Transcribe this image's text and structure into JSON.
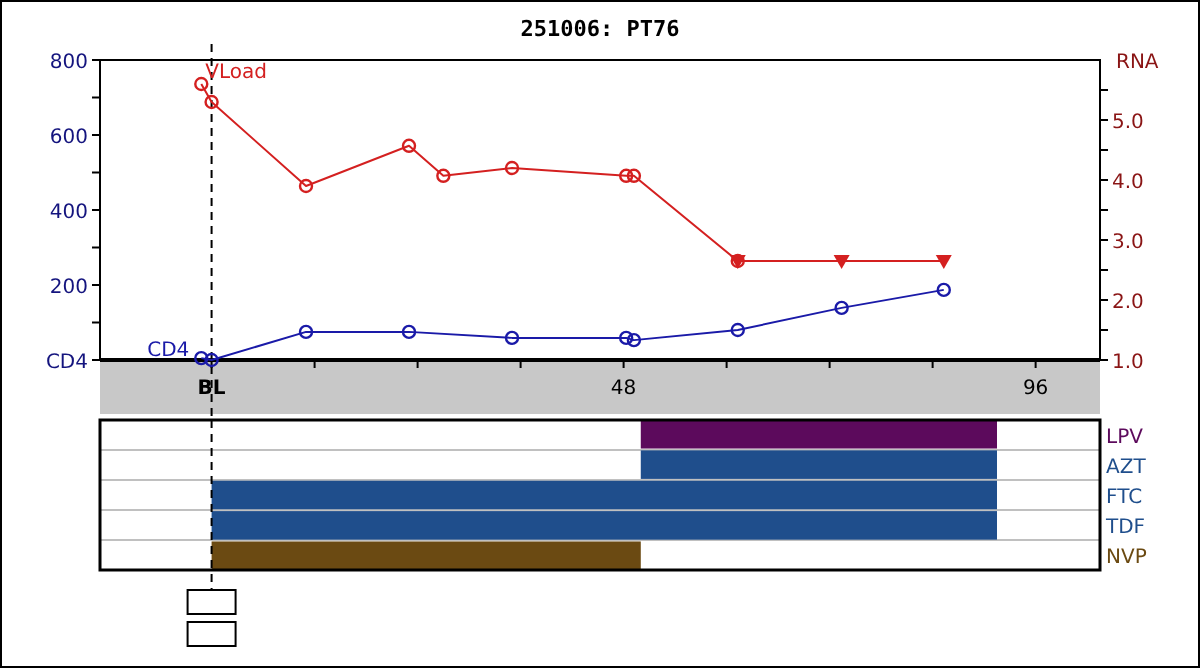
{
  "chart_data": [
    {
      "type": "line",
      "title": "251006: PT76",
      "y2label": "RNA",
      "xlim": [
        -13,
        103.5
      ],
      "xticks": [
        {
          "value": 0,
          "label": "BL"
        },
        {
          "value": 12,
          "label": null
        },
        {
          "value": 24,
          "label": null
        },
        {
          "value": 36,
          "label": null
        },
        48,
        {
          "value": 60,
          "label": null
        },
        {
          "value": 72,
          "label": null
        },
        {
          "value": 84,
          "label": null
        },
        96
      ],
      "ylim": [
        0,
        800
      ],
      "yticks": [
        {
          "value": 0,
          "label": "CD4"
        },
        {
          "value": 100,
          "label": null
        },
        200,
        {
          "value": 300,
          "label": null
        },
        400,
        {
          "value": 500,
          "label": null
        },
        600,
        {
          "value": 700,
          "label": null
        },
        800
      ],
      "y2lim": [
        1,
        6
      ],
      "y2ticks": [
        {
          "value": 1,
          "label": "1.0"
        },
        {
          "value": 1.5,
          "label": null
        },
        {
          "value": 2,
          "label": "2.0"
        },
        {
          "value": 2.5,
          "label": null
        },
        {
          "value": 3,
          "label": "3.0"
        },
        {
          "value": 3.5,
          "label": null
        },
        {
          "value": 4,
          "label": "4.0"
        },
        {
          "value": 4.5,
          "label": null
        },
        {
          "value": 5,
          "label": "5.0"
        },
        {
          "value": 5.5,
          "label": null
        }
      ],
      "grid": false,
      "marker": "circle",
      "ref_lines": [
        {
          "axis": "x",
          "value": 0,
          "color": "#000000",
          "line_style": "dashed"
        }
      ],
      "series": [
        {
          "name": "CD4",
          "color": "#1a1aa8",
          "x": [
            -1.2,
            0,
            11,
            23,
            35,
            48.3,
            49.2,
            61.3,
            73.4,
            85.3
          ],
          "values": [
            5,
            0,
            75,
            75,
            59,
            59,
            53,
            80,
            139,
            187
          ]
        },
        {
          "name": "VLoad",
          "color": "#d42020",
          "axis": "y2",
          "x": [
            -1.2,
            0,
            11,
            23,
            27,
            35,
            48.3,
            49.2,
            61.3
          ],
          "values": [
            5.6,
            5.3,
            3.9,
            4.57,
            4.07,
            4.2,
            4.07,
            4.07,
            2.65
          ]
        },
        {
          "color": "#d42020",
          "axis": "y2",
          "marker": "triangle",
          "x": [
            61.3,
            73.4,
            85.3
          ],
          "values": [
            2.65,
            2.65,
            2.65
          ]
        }
      ]
    },
    {
      "type": "bar",
      "orientation": "horizontal",
      "categories": [
        "LPV",
        "AZT",
        "FTC",
        "TDF",
        "NVP"
      ],
      "base": [
        50,
        50,
        0,
        0,
        0
      ],
      "values": [
        41.5,
        41.5,
        91.5,
        91.5,
        50
      ],
      "colors": [
        "#5c0a5c",
        "#1f4e8c",
        "#1f4e8c",
        "#1f4e8c",
        "#6b4a12"
      ],
      "xlim": [
        -13,
        103.5
      ],
      "tick_labels": "y",
      "grid": "y",
      "ref_lines": [
        {
          "axis": "x",
          "value": 0,
          "color": "#000000",
          "line_style": "dashed"
        }
      ]
    }
  ]
}
